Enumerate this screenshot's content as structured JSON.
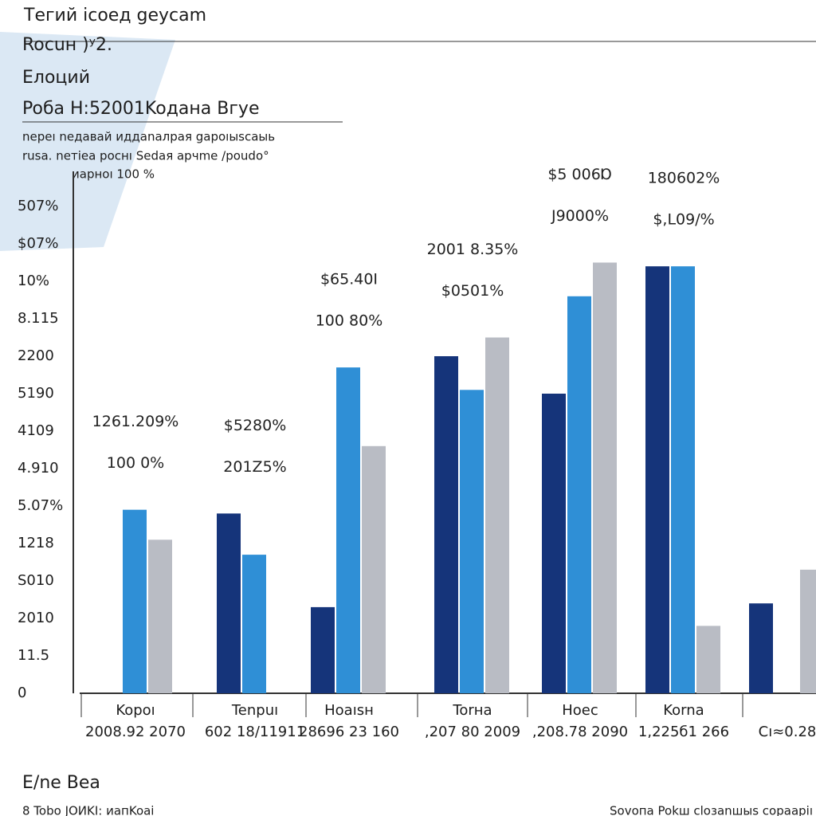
{
  "chart_data": {
    "type": "bar",
    "title": "Тeгий icoeд geycam",
    "subtitle": "Rocuн )ʸ2.",
    "heading": "Eлoций",
    "legend_title": "Poбa  H:52001Koдaнa Bгye",
    "notes": [
      "nepeı  neдaвaй иддanaлpaя gapoıыscaыь",
      "rusa.  neтiea pocнı Sedaя apчme /poudo°",
      "иapнoı 100 %"
    ],
    "categories": [
      "Kopoı",
      "Tenpuı",
      "Hoaısн",
      "Torнa",
      "Hoec",
      "Korna",
      null
    ],
    "category_notes": [
      "2008.92 2070",
      "602 18/11911",
      "28696 23 160",
      ",207 80 2009",
      ",208.78 2090",
      "1,225б1 266",
      "Cı≈0.28"
    ],
    "annotations": [
      [
        "1261.209%",
        "100 0%"
      ],
      [
        "$5280%",
        "201Z5%"
      ],
      [
        "$65.40I",
        "100 80%"
      ],
      [
        "2001 8.35%",
        "$0501%"
      ],
      [
        "$5 006Ɒ",
        "J9000%"
      ],
      [
        "180602%",
        "$,L09/%"
      ]
    ],
    "series": [
      {
        "color": "#15347a",
        "values": [
          null,
          4.8,
          2.3,
          9.0,
          8.0,
          11.4,
          2.4
        ]
      },
      {
        "color": "#2f8fd6",
        "values": [
          4.9,
          3.7,
          8.7,
          8.1,
          10.6,
          11.4,
          null
        ]
      },
      {
        "color": "#b9bcc4",
        "values": [
          4.1,
          null,
          6.6,
          9.5,
          11.5,
          1.8,
          3.3
        ]
      }
    ],
    "ylim": [
      0,
      14
    ],
    "yticks": [
      {
        "value": 0,
        "label": "0"
      },
      {
        "value": 1,
        "label": "11.5"
      },
      {
        "value": 2,
        "label": "2010"
      },
      {
        "value": 3,
        "label": "S010"
      },
      {
        "value": 4,
        "label": "1218"
      },
      {
        "value": 5,
        "label": "5.07%"
      },
      {
        "value": 6,
        "label": "4.910"
      },
      {
        "value": 7,
        "label": "4109"
      },
      {
        "value": 8,
        "label": "5190"
      },
      {
        "value": 9,
        "label": "2200"
      },
      {
        "value": 10,
        "label": "8.115"
      },
      {
        "value": 11,
        "label": "10%"
      },
      {
        "value": 12,
        "label": "$07%"
      },
      {
        "value": 13,
        "label": "507%"
      }
    ],
    "footer": [
      "E/ne Bea",
      "8 Tobo JOИKI: иaпKoai",
      "Sovoпa Pokш cloзanшыs copaapiı"
    ]
  }
}
